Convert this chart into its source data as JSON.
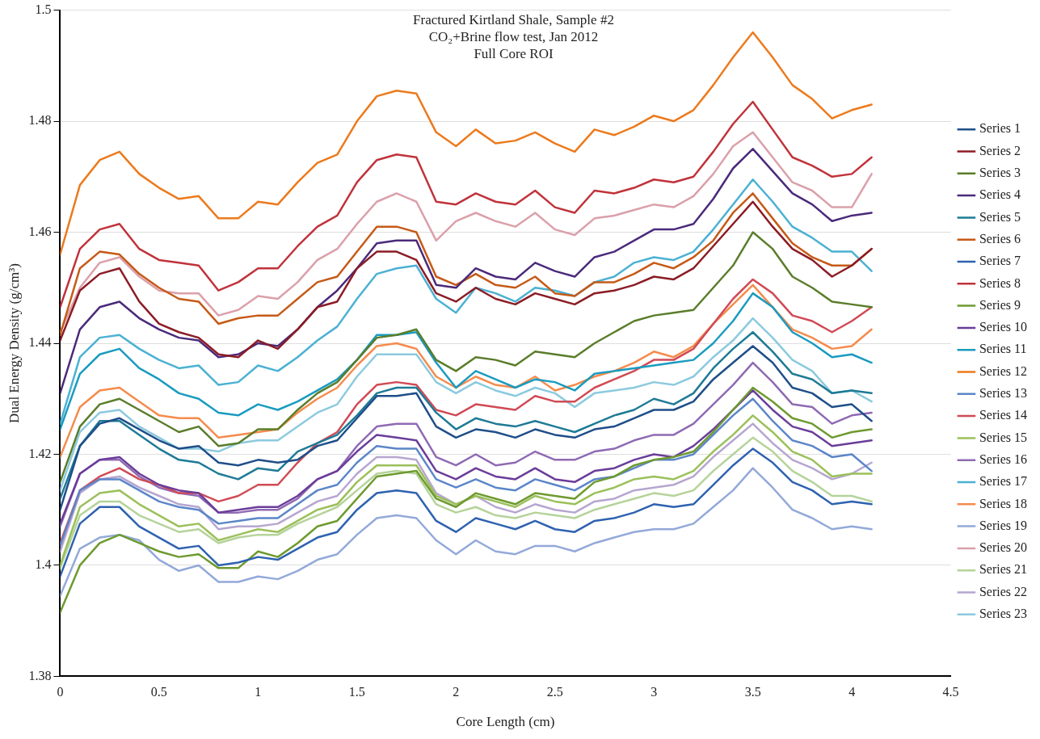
{
  "chart_data": {
    "type": "line",
    "title": "Fractured Kirtland Shale, Sample #2\nCO₂+Brine flow test, Jan 2012\nFull Core ROI",
    "xlabel": "Core Length (cm)",
    "ylabel": "Dual Energy Density (g/cm³)",
    "x": [
      0,
      0.1,
      0.2,
      0.3,
      0.4,
      0.5,
      0.6,
      0.7,
      0.8,
      0.9,
      1,
      1.1,
      1.2,
      1.3,
      1.4,
      1.5,
      1.6,
      1.7,
      1.8,
      1.9,
      2,
      2.1,
      2.2,
      2.3,
      2.4,
      2.5,
      2.6,
      2.7,
      2.8,
      2.9,
      3,
      3.1,
      3.2,
      3.3,
      3.4,
      3.5,
      3.6,
      3.7,
      3.8,
      3.9,
      4,
      4.1
    ],
    "xlim": [
      0,
      4.5
    ],
    "xticks": [
      0,
      0.5,
      1,
      1.5,
      2,
      2.5,
      3,
      3.5,
      4,
      4.5
    ],
    "ylim": [
      1.38,
      1.5
    ],
    "yticks": [
      1.38,
      1.4,
      1.42,
      1.44,
      1.46,
      1.48,
      1.5
    ],
    "grid": "y",
    "legend": "right",
    "marker": "none",
    "line_style": "solid",
    "series": [
      {
        "name": "Series 1",
        "color": "#1f4e89",
        "values": [
          1.41,
          1.4215,
          1.4255,
          1.4265,
          1.4245,
          1.4225,
          1.421,
          1.4215,
          1.4185,
          1.418,
          1.419,
          1.4185,
          1.419,
          1.4215,
          1.4225,
          1.4265,
          1.4305,
          1.4305,
          1.431,
          1.425,
          1.423,
          1.4245,
          1.424,
          1.423,
          1.4245,
          1.4235,
          1.423,
          1.4245,
          1.425,
          1.4265,
          1.428,
          1.428,
          1.4295,
          1.4335,
          1.4365,
          1.4395,
          1.4365,
          1.432,
          1.431,
          1.4285,
          1.429,
          1.426
        ]
      },
      {
        "name": "Series 2",
        "color": "#8b1c25",
        "values": [
          1.4405,
          1.4495,
          1.4525,
          1.4535,
          1.4475,
          1.4435,
          1.442,
          1.441,
          1.438,
          1.4375,
          1.4405,
          1.439,
          1.4425,
          1.4465,
          1.4475,
          1.4535,
          1.4565,
          1.4565,
          1.455,
          1.449,
          1.4475,
          1.45,
          1.448,
          1.447,
          1.449,
          1.448,
          1.447,
          1.449,
          1.4495,
          1.4505,
          1.452,
          1.4515,
          1.4535,
          1.4575,
          1.4615,
          1.4655,
          1.461,
          1.457,
          1.455,
          1.452,
          1.454,
          1.457
        ]
      },
      {
        "name": "Series 3",
        "color": "#5a7d2a",
        "values": [
          1.415,
          1.425,
          1.429,
          1.43,
          1.428,
          1.426,
          1.424,
          1.425,
          1.4215,
          1.422,
          1.4245,
          1.4245,
          1.428,
          1.431,
          1.433,
          1.437,
          1.441,
          1.4415,
          1.4425,
          1.437,
          1.435,
          1.4375,
          1.437,
          1.436,
          1.4385,
          1.438,
          1.4375,
          1.44,
          1.442,
          1.444,
          1.445,
          1.4455,
          1.446,
          1.45,
          1.454,
          1.46,
          1.457,
          1.452,
          1.45,
          1.4475,
          1.447,
          1.4465
        ]
      },
      {
        "name": "Series 4",
        "color": "#4b2a7b",
        "values": [
          1.431,
          1.4425,
          1.4465,
          1.4475,
          1.4445,
          1.4425,
          1.441,
          1.4405,
          1.4375,
          1.438,
          1.44,
          1.4395,
          1.4425,
          1.4465,
          1.4495,
          1.4535,
          1.458,
          1.4585,
          1.4585,
          1.4505,
          1.45,
          1.4535,
          1.452,
          1.4515,
          1.4545,
          1.453,
          1.452,
          1.4555,
          1.4565,
          1.4585,
          1.4605,
          1.4605,
          1.4615,
          1.466,
          1.4715,
          1.475,
          1.471,
          1.467,
          1.465,
          1.462,
          1.463,
          1.4635
        ]
      },
      {
        "name": "Series 5",
        "color": "#1e7b96",
        "values": [
          1.412,
          1.4215,
          1.426,
          1.426,
          1.4235,
          1.421,
          1.419,
          1.4185,
          1.4165,
          1.4155,
          1.4175,
          1.417,
          1.4205,
          1.422,
          1.4235,
          1.427,
          1.431,
          1.432,
          1.432,
          1.4275,
          1.4245,
          1.4265,
          1.4255,
          1.425,
          1.426,
          1.425,
          1.424,
          1.4255,
          1.427,
          1.428,
          1.43,
          1.429,
          1.431,
          1.4355,
          1.439,
          1.442,
          1.4385,
          1.4345,
          1.4335,
          1.431,
          1.4315,
          1.431
        ]
      },
      {
        "name": "Series 6",
        "color": "#c55a17",
        "values": [
          1.4415,
          1.4535,
          1.4565,
          1.456,
          1.4525,
          1.45,
          1.448,
          1.4475,
          1.4435,
          1.4445,
          1.445,
          1.445,
          1.448,
          1.451,
          1.452,
          1.4565,
          1.461,
          1.461,
          1.46,
          1.452,
          1.4505,
          1.4525,
          1.4505,
          1.45,
          1.452,
          1.449,
          1.4485,
          1.451,
          1.451,
          1.4525,
          1.4545,
          1.4535,
          1.4555,
          1.4585,
          1.4635,
          1.467,
          1.4625,
          1.458,
          1.4555,
          1.454,
          1.454,
          1.457
        ]
      },
      {
        "name": "Series 7",
        "color": "#2e62b0",
        "values": [
          1.398,
          1.4075,
          1.4105,
          1.4105,
          1.407,
          1.405,
          1.403,
          1.4035,
          1.4,
          1.4005,
          1.4015,
          1.401,
          1.403,
          1.405,
          1.406,
          1.41,
          1.413,
          1.4135,
          1.413,
          1.408,
          1.406,
          1.4085,
          1.4075,
          1.4065,
          1.408,
          1.4065,
          1.406,
          1.408,
          1.4085,
          1.4095,
          1.411,
          1.4105,
          1.411,
          1.4145,
          1.418,
          1.421,
          1.4185,
          1.415,
          1.4135,
          1.411,
          1.4115,
          1.411
        ]
      },
      {
        "name": "Series 8",
        "color": "#c0333b",
        "values": [
          1.4465,
          1.457,
          1.4605,
          1.4615,
          1.457,
          1.455,
          1.4545,
          1.454,
          1.4495,
          1.451,
          1.4535,
          1.4535,
          1.4575,
          1.461,
          1.463,
          1.469,
          1.473,
          1.474,
          1.4735,
          1.4655,
          1.465,
          1.467,
          1.4655,
          1.465,
          1.4675,
          1.4645,
          1.4635,
          1.4675,
          1.467,
          1.468,
          1.4695,
          1.469,
          1.47,
          1.4745,
          1.4795,
          1.4835,
          1.4785,
          1.4735,
          1.472,
          1.47,
          1.4705,
          1.4735
        ]
      },
      {
        "name": "Series 9",
        "color": "#6e9a2f",
        "values": [
          1.3915,
          1.4,
          1.404,
          1.4055,
          1.404,
          1.4025,
          1.4015,
          1.402,
          1.3995,
          1.3995,
          1.4025,
          1.4015,
          1.404,
          1.407,
          1.408,
          1.412,
          1.416,
          1.4165,
          1.417,
          1.412,
          1.4105,
          1.413,
          1.412,
          1.411,
          1.413,
          1.4125,
          1.412,
          1.415,
          1.416,
          1.418,
          1.419,
          1.4195,
          1.4205,
          1.424,
          1.428,
          1.432,
          1.4295,
          1.4265,
          1.4255,
          1.423,
          1.424,
          1.4245
        ]
      },
      {
        "name": "Series 10",
        "color": "#6a3d9a",
        "values": [
          1.4075,
          1.4165,
          1.419,
          1.4195,
          1.4165,
          1.4145,
          1.4135,
          1.413,
          1.4095,
          1.41,
          1.4105,
          1.4105,
          1.4125,
          1.4155,
          1.417,
          1.4205,
          1.4235,
          1.423,
          1.4225,
          1.417,
          1.4155,
          1.4175,
          1.416,
          1.4155,
          1.4175,
          1.4155,
          1.415,
          1.417,
          1.4175,
          1.419,
          1.42,
          1.4195,
          1.4215,
          1.4245,
          1.428,
          1.4315,
          1.428,
          1.425,
          1.424,
          1.4215,
          1.422,
          1.4225
        ]
      },
      {
        "name": "Series 11",
        "color": "#1a9bc0",
        "values": [
          1.4245,
          1.4345,
          1.438,
          1.439,
          1.4355,
          1.4335,
          1.431,
          1.43,
          1.4275,
          1.427,
          1.429,
          1.428,
          1.4295,
          1.4315,
          1.4335,
          1.437,
          1.4415,
          1.4415,
          1.442,
          1.4365,
          1.432,
          1.435,
          1.4335,
          1.432,
          1.4335,
          1.433,
          1.4315,
          1.4345,
          1.435,
          1.4355,
          1.436,
          1.4365,
          1.437,
          1.44,
          1.444,
          1.449,
          1.4465,
          1.442,
          1.44,
          1.4375,
          1.438,
          1.4365
        ]
      },
      {
        "name": "Series 12",
        "color": "#ec7a1c",
        "values": [
          1.456,
          1.4685,
          1.473,
          1.4745,
          1.4705,
          1.468,
          1.466,
          1.4665,
          1.4625,
          1.4625,
          1.4655,
          1.465,
          1.469,
          1.4725,
          1.474,
          1.48,
          1.4845,
          1.4855,
          1.485,
          1.478,
          1.4755,
          1.4785,
          1.476,
          1.4765,
          1.478,
          1.476,
          1.4745,
          1.4785,
          1.4775,
          1.479,
          1.481,
          1.48,
          1.482,
          1.4865,
          1.4915,
          1.496,
          1.4915,
          1.4865,
          1.484,
          1.4805,
          1.482,
          1.483
        ]
      },
      {
        "name": "Series 13",
        "color": "#5b86c8",
        "values": [
          1.4035,
          1.4135,
          1.4155,
          1.4155,
          1.4135,
          1.4115,
          1.4105,
          1.41,
          1.4075,
          1.408,
          1.4085,
          1.4085,
          1.411,
          1.4135,
          1.4145,
          1.4185,
          1.4215,
          1.421,
          1.421,
          1.4155,
          1.414,
          1.4155,
          1.414,
          1.4135,
          1.4155,
          1.4145,
          1.4135,
          1.4155,
          1.416,
          1.4175,
          1.419,
          1.419,
          1.42,
          1.4235,
          1.427,
          1.43,
          1.426,
          1.4225,
          1.4215,
          1.4195,
          1.42,
          1.417
        ]
      },
      {
        "name": "Series 14",
        "color": "#d04a55",
        "values": [
          1.404,
          1.4135,
          1.416,
          1.4175,
          1.4155,
          1.4145,
          1.413,
          1.413,
          1.4115,
          1.4125,
          1.4145,
          1.4145,
          1.4185,
          1.422,
          1.424,
          1.429,
          1.4325,
          1.433,
          1.4325,
          1.428,
          1.427,
          1.429,
          1.4285,
          1.428,
          1.4305,
          1.4295,
          1.4295,
          1.432,
          1.4335,
          1.435,
          1.437,
          1.437,
          1.439,
          1.4435,
          1.448,
          1.4515,
          1.449,
          1.445,
          1.444,
          1.442,
          1.444,
          1.4465
        ]
      },
      {
        "name": "Series 15",
        "color": "#9bc05a",
        "values": [
          1.4,
          1.4105,
          1.413,
          1.4135,
          1.411,
          1.409,
          1.407,
          1.4075,
          1.4045,
          1.4055,
          1.4065,
          1.406,
          1.408,
          1.41,
          1.411,
          1.415,
          1.418,
          1.418,
          1.418,
          1.4125,
          1.411,
          1.4125,
          1.4115,
          1.4105,
          1.4125,
          1.4115,
          1.411,
          1.413,
          1.414,
          1.4155,
          1.416,
          1.4155,
          1.417,
          1.4205,
          1.4235,
          1.427,
          1.424,
          1.4205,
          1.419,
          1.416,
          1.4165,
          1.4165
        ]
      },
      {
        "name": "Series 16",
        "color": "#8f6ab3",
        "values": [
          1.407,
          1.4165,
          1.419,
          1.419,
          1.416,
          1.414,
          1.413,
          1.4125,
          1.4095,
          1.4095,
          1.41,
          1.41,
          1.412,
          1.4155,
          1.417,
          1.4215,
          1.425,
          1.4255,
          1.4255,
          1.4195,
          1.418,
          1.42,
          1.418,
          1.4185,
          1.4205,
          1.419,
          1.419,
          1.4205,
          1.421,
          1.4225,
          1.4235,
          1.4235,
          1.4255,
          1.429,
          1.4325,
          1.4365,
          1.433,
          1.429,
          1.4285,
          1.4255,
          1.427,
          1.4275
        ]
      },
      {
        "name": "Series 17",
        "color": "#4bb1d3",
        "values": [
          1.4255,
          1.4375,
          1.441,
          1.4415,
          1.439,
          1.437,
          1.4355,
          1.436,
          1.4325,
          1.433,
          1.436,
          1.435,
          1.4375,
          1.4405,
          1.443,
          1.448,
          1.4525,
          1.4535,
          1.454,
          1.448,
          1.4455,
          1.45,
          1.449,
          1.4475,
          1.45,
          1.4495,
          1.4485,
          1.451,
          1.452,
          1.4545,
          1.4555,
          1.455,
          1.4565,
          1.4605,
          1.465,
          1.4695,
          1.4655,
          1.461,
          1.459,
          1.4565,
          1.4565,
          1.453
        ]
      },
      {
        "name": "Series 18",
        "color": "#f58b4c",
        "values": [
          1.4195,
          1.4285,
          1.4315,
          1.432,
          1.4295,
          1.427,
          1.4265,
          1.4265,
          1.423,
          1.4235,
          1.424,
          1.4245,
          1.4275,
          1.43,
          1.432,
          1.436,
          1.4395,
          1.44,
          1.439,
          1.434,
          1.432,
          1.434,
          1.4325,
          1.432,
          1.434,
          1.4315,
          1.4325,
          1.434,
          1.435,
          1.4365,
          1.4385,
          1.4375,
          1.4395,
          1.4435,
          1.447,
          1.4505,
          1.4465,
          1.4425,
          1.441,
          1.439,
          1.4395,
          1.4425
        ]
      },
      {
        "name": "Series 19",
        "color": "#93a9d9",
        "values": [
          1.3945,
          1.403,
          1.405,
          1.4055,
          1.4045,
          1.401,
          1.399,
          1.4,
          1.397,
          1.397,
          1.398,
          1.3975,
          1.399,
          1.401,
          1.402,
          1.4055,
          1.4085,
          1.409,
          1.4085,
          1.4045,
          1.402,
          1.4045,
          1.4025,
          1.402,
          1.4035,
          1.4035,
          1.4025,
          1.404,
          1.405,
          1.406,
          1.4065,
          1.4065,
          1.4075,
          1.4105,
          1.4135,
          1.4175,
          1.414,
          1.41,
          1.4085,
          1.4065,
          1.407,
          1.4065
        ]
      },
      {
        "name": "Series 20",
        "color": "#dba0aa",
        "values": [
          1.442,
          1.45,
          1.4545,
          1.4555,
          1.452,
          1.4495,
          1.449,
          1.449,
          1.445,
          1.446,
          1.4485,
          1.448,
          1.451,
          1.455,
          1.457,
          1.4615,
          1.4655,
          1.467,
          1.4655,
          1.4585,
          1.462,
          1.4635,
          1.462,
          1.461,
          1.4635,
          1.4605,
          1.4595,
          1.4625,
          1.463,
          1.464,
          1.465,
          1.4645,
          1.4665,
          1.4705,
          1.4755,
          1.478,
          1.4735,
          1.469,
          1.4675,
          1.4645,
          1.4645,
          1.4705
        ]
      },
      {
        "name": "Series 21",
        "color": "#b5d39a",
        "values": [
          1.3995,
          1.409,
          1.4115,
          1.4115,
          1.409,
          1.4075,
          1.406,
          1.4065,
          1.404,
          1.405,
          1.4055,
          1.4055,
          1.4075,
          1.409,
          1.4105,
          1.4135,
          1.4165,
          1.417,
          1.4165,
          1.411,
          1.4095,
          1.4105,
          1.409,
          1.4085,
          1.4095,
          1.409,
          1.4085,
          1.41,
          1.411,
          1.412,
          1.413,
          1.4125,
          1.4135,
          1.417,
          1.42,
          1.423,
          1.4205,
          1.417,
          1.415,
          1.4125,
          1.4125,
          1.4115
        ]
      },
      {
        "name": "Series 22",
        "color": "#b6a6d0",
        "values": [
          1.4025,
          1.413,
          1.4155,
          1.416,
          1.414,
          1.4125,
          1.411,
          1.4105,
          1.4065,
          1.407,
          1.407,
          1.4075,
          1.4095,
          1.4115,
          1.4125,
          1.4165,
          1.4195,
          1.4195,
          1.419,
          1.413,
          1.411,
          1.4125,
          1.4105,
          1.4095,
          1.411,
          1.41,
          1.4095,
          1.4115,
          1.412,
          1.4135,
          1.414,
          1.4145,
          1.416,
          1.4195,
          1.4225,
          1.4255,
          1.422,
          1.419,
          1.4175,
          1.4155,
          1.4165,
          1.4185
        ]
      },
      {
        "name": "Series 23",
        "color": "#8ccadf",
        "values": [
          1.4135,
          1.424,
          1.4275,
          1.428,
          1.425,
          1.423,
          1.421,
          1.421,
          1.4205,
          1.422,
          1.4225,
          1.4225,
          1.425,
          1.4275,
          1.429,
          1.434,
          1.438,
          1.438,
          1.438,
          1.433,
          1.431,
          1.433,
          1.4315,
          1.4305,
          1.432,
          1.431,
          1.4285,
          1.431,
          1.4315,
          1.432,
          1.433,
          1.4325,
          1.434,
          1.4375,
          1.4405,
          1.4445,
          1.441,
          1.437,
          1.435,
          1.431,
          1.4315,
          1.4295
        ]
      }
    ]
  }
}
